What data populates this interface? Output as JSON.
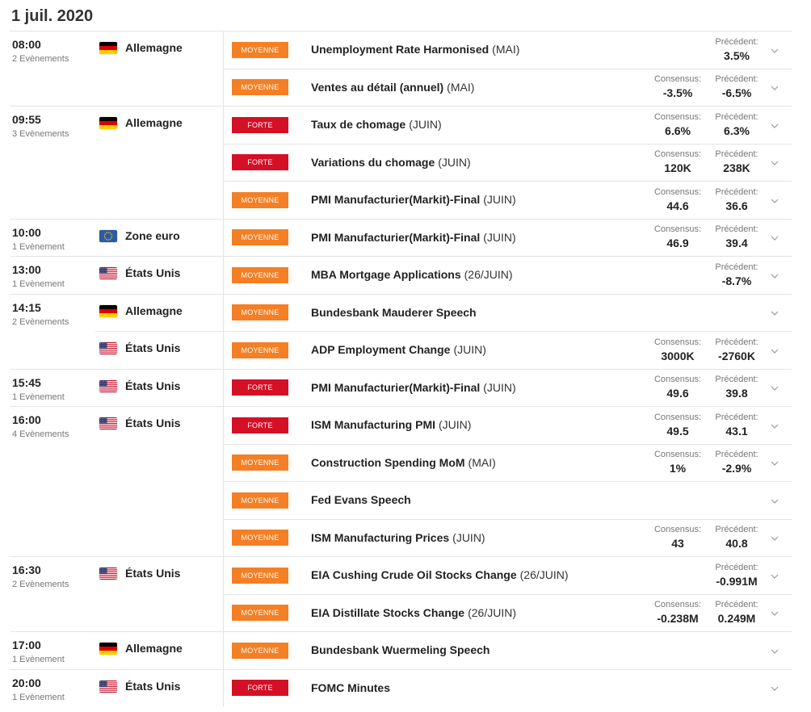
{
  "date_title": "1 juil. 2020",
  "labels": {
    "consensus": "Consensus:",
    "previous": "Précédent:"
  },
  "badge_colors": {
    "MOYENNE": "#f47f24",
    "FORTE": "#d50f25"
  },
  "row_expand_icon": "chevron-down-icon",
  "groups": [
    {
      "time": "08:00",
      "count": "2 Evènements",
      "countries": [
        {
          "name": "Allemagne",
          "flag_icon": "germany-flag-icon",
          "events": [
            {
              "importance": "MOYENNE",
              "name": "Unemployment Rate Harmonised",
              "period": "(MAI)",
              "previous": "3.5%"
            },
            {
              "importance": "MOYENNE",
              "name": "Ventes au détail (annuel)",
              "period": "(MAI)",
              "consensus": "-3.5%",
              "previous": "-6.5%"
            }
          ]
        }
      ]
    },
    {
      "time": "09:55",
      "count": "3 Evènements",
      "countries": [
        {
          "name": "Allemagne",
          "flag_icon": "germany-flag-icon",
          "events": [
            {
              "importance": "FORTE",
              "name": "Taux de chomage",
              "period": "(JUIN)",
              "consensus": "6.6%",
              "previous": "6.3%"
            },
            {
              "importance": "FORTE",
              "name": "Variations du chomage",
              "period": "(JUIN)",
              "consensus": "120K",
              "previous": "238K"
            },
            {
              "importance": "MOYENNE",
              "name": "PMI Manufacturier(Markit)-Final",
              "period": "(JUIN)",
              "consensus": "44.6",
              "previous": "36.6"
            }
          ]
        }
      ]
    },
    {
      "time": "10:00",
      "count": "1 Evènement",
      "countries": [
        {
          "name": "Zone euro",
          "flag_icon": "eu-flag-icon",
          "events": [
            {
              "importance": "MOYENNE",
              "name": "PMI Manufacturier(Markit)-Final",
              "period": "(JUIN)",
              "consensus": "46.9",
              "previous": "39.4"
            }
          ]
        }
      ]
    },
    {
      "time": "13:00",
      "count": "1 Evènement",
      "countries": [
        {
          "name": "États Unis",
          "flag_icon": "us-flag-icon",
          "events": [
            {
              "importance": "MOYENNE",
              "name": "MBA Mortgage Applications",
              "period": "(26/JUIN)",
              "previous": "-8.7%"
            }
          ]
        }
      ]
    },
    {
      "time": "14:15",
      "count": "2 Evènements",
      "countries": [
        {
          "name": "Allemagne",
          "flag_icon": "germany-flag-icon",
          "events": [
            {
              "importance": "MOYENNE",
              "name": "Bundesbank Mauderer Speech"
            }
          ]
        },
        {
          "name": "États Unis",
          "flag_icon": "us-flag-icon",
          "events": [
            {
              "importance": "MOYENNE",
              "name": "ADP Employment Change",
              "period": "(JUIN)",
              "consensus": "3000K",
              "previous": "-2760K"
            }
          ]
        }
      ]
    },
    {
      "time": "15:45",
      "count": "1 Evènement",
      "countries": [
        {
          "name": "États Unis",
          "flag_icon": "us-flag-icon",
          "events": [
            {
              "importance": "FORTE",
              "name": "PMI Manufacturier(Markit)-Final",
              "period": "(JUIN)",
              "consensus": "49.6",
              "previous": "39.8"
            }
          ]
        }
      ]
    },
    {
      "time": "16:00",
      "count": "4 Evènements",
      "countries": [
        {
          "name": "États Unis",
          "flag_icon": "us-flag-icon",
          "events": [
            {
              "importance": "FORTE",
              "name": "ISM Manufacturing PMI",
              "period": "(JUIN)",
              "consensus": "49.5",
              "previous": "43.1"
            },
            {
              "importance": "MOYENNE",
              "name": "Construction Spending MoM",
              "period": "(MAI)",
              "consensus": "1%",
              "previous": "-2.9%"
            },
            {
              "importance": "MOYENNE",
              "name": "Fed Evans Speech"
            },
            {
              "importance": "MOYENNE",
              "name": "ISM Manufacturing Prices",
              "period": "(JUIN)",
              "consensus": "43",
              "previous": "40.8"
            }
          ]
        }
      ]
    },
    {
      "time": "16:30",
      "count": "2 Evènements",
      "countries": [
        {
          "name": "États Unis",
          "flag_icon": "us-flag-icon",
          "events": [
            {
              "importance": "MOYENNE",
              "name": "EIA Cushing Crude Oil Stocks Change",
              "period": "(26/JUIN)",
              "previous": "-0.991M"
            },
            {
              "importance": "MOYENNE",
              "name": "EIA Distillate Stocks Change",
              "period": "(26/JUIN)",
              "consensus": "-0.238M",
              "previous": "0.249M"
            }
          ]
        }
      ]
    },
    {
      "time": "17:00",
      "count": "1 Evènement",
      "countries": [
        {
          "name": "Allemagne",
          "flag_icon": "germany-flag-icon",
          "events": [
            {
              "importance": "MOYENNE",
              "name": "Bundesbank Wuermeling Speech"
            }
          ]
        }
      ]
    },
    {
      "time": "20:00",
      "count": "1 Evènement",
      "countries": [
        {
          "name": "États Unis",
          "flag_icon": "us-flag-icon",
          "events": [
            {
              "importance": "FORTE",
              "name": "FOMC Minutes"
            }
          ]
        }
      ]
    }
  ]
}
